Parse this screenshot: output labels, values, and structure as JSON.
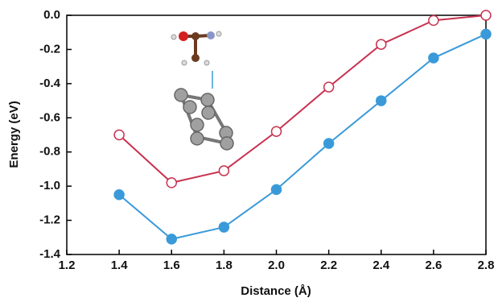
{
  "chart_data": {
    "type": "line",
    "x_label": "Distance (Å)",
    "y_label": "Energy (eV)",
    "x": [
      1.4,
      1.6,
      1.8,
      2.0,
      2.2,
      2.4,
      2.6,
      2.8
    ],
    "series": [
      {
        "color": "#c8314f",
        "marker": "open",
        "values": [
          -0.7,
          -0.98,
          -0.91,
          -0.68,
          -0.42,
          -0.17,
          -0.03,
          0.0
        ]
      },
      {
        "color": "#3a9ad9",
        "marker": "filled",
        "values": [
          -1.05,
          -1.31,
          -1.24,
          -1.02,
          -0.75,
          -0.5,
          -0.25,
          -0.11
        ]
      }
    ],
    "xlim": [
      1.2,
      2.8
    ],
    "xticks": [
      1.2,
      1.4,
      1.6,
      1.8,
      {
        "value": 2.0,
        "label": "2.0"
      },
      2.2,
      2.4,
      2.6,
      2.8
    ],
    "ylim": [
      -1.4,
      0.0
    ],
    "yticks": [
      {
        "value": -1.4,
        "label": "-1.4"
      },
      {
        "value": -1.2,
        "label": "-1.2"
      },
      {
        "value": -1.0,
        "label": "-1.0"
      },
      {
        "value": -0.8,
        "label": "-0.8"
      },
      {
        "value": -0.6,
        "label": "-0.6"
      },
      {
        "value": -0.4,
        "label": "-0.4"
      },
      {
        "value": -0.2,
        "label": "-0.2"
      },
      {
        "value": 0.0,
        "label": "0.0"
      }
    ],
    "grid": false
  }
}
